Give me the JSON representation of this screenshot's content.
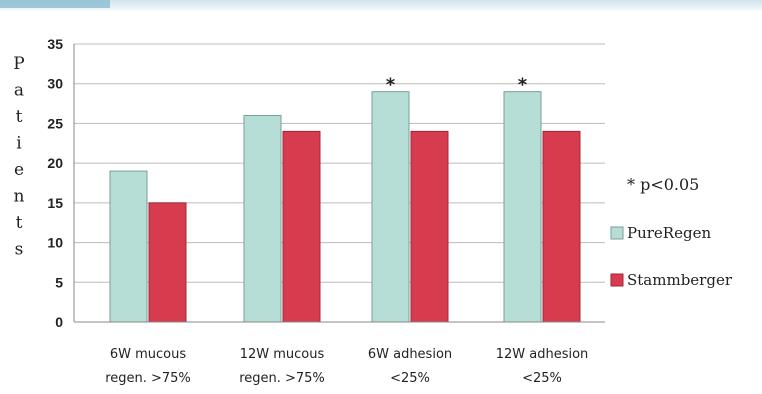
{
  "colors": {
    "pureregen": "#b6ddd6",
    "pureregen_stroke": "#7a9e98",
    "stammberger": "#d63c4e",
    "stammberger_stroke": "#a2283a",
    "grid": "#bcbcbc",
    "axis": "#888888"
  },
  "chart_data": {
    "type": "bar",
    "ylabel": "Patients",
    "ylim": [
      0,
      35
    ],
    "yticks": [
      "0",
      "5",
      "10",
      "15",
      "20",
      "25",
      "30",
      "35"
    ],
    "grid": true,
    "legend_position": "right",
    "categories": [
      [
        "6W mucous",
        "regen. >75%"
      ],
      [
        "12W mucous",
        "regen. >75%"
      ],
      [
        "6W adhesion",
        "<25%"
      ],
      [
        "12W adhesion",
        "<25%"
      ]
    ],
    "series": [
      {
        "name": "PureRegen",
        "values": [
          19,
          26,
          29,
          29
        ]
      },
      {
        "name": "Stammberger",
        "values": [
          15,
          24,
          24,
          24
        ]
      }
    ],
    "significance_markers": [
      "",
      "",
      "*",
      "*"
    ],
    "annotation": "* p<0.05"
  }
}
